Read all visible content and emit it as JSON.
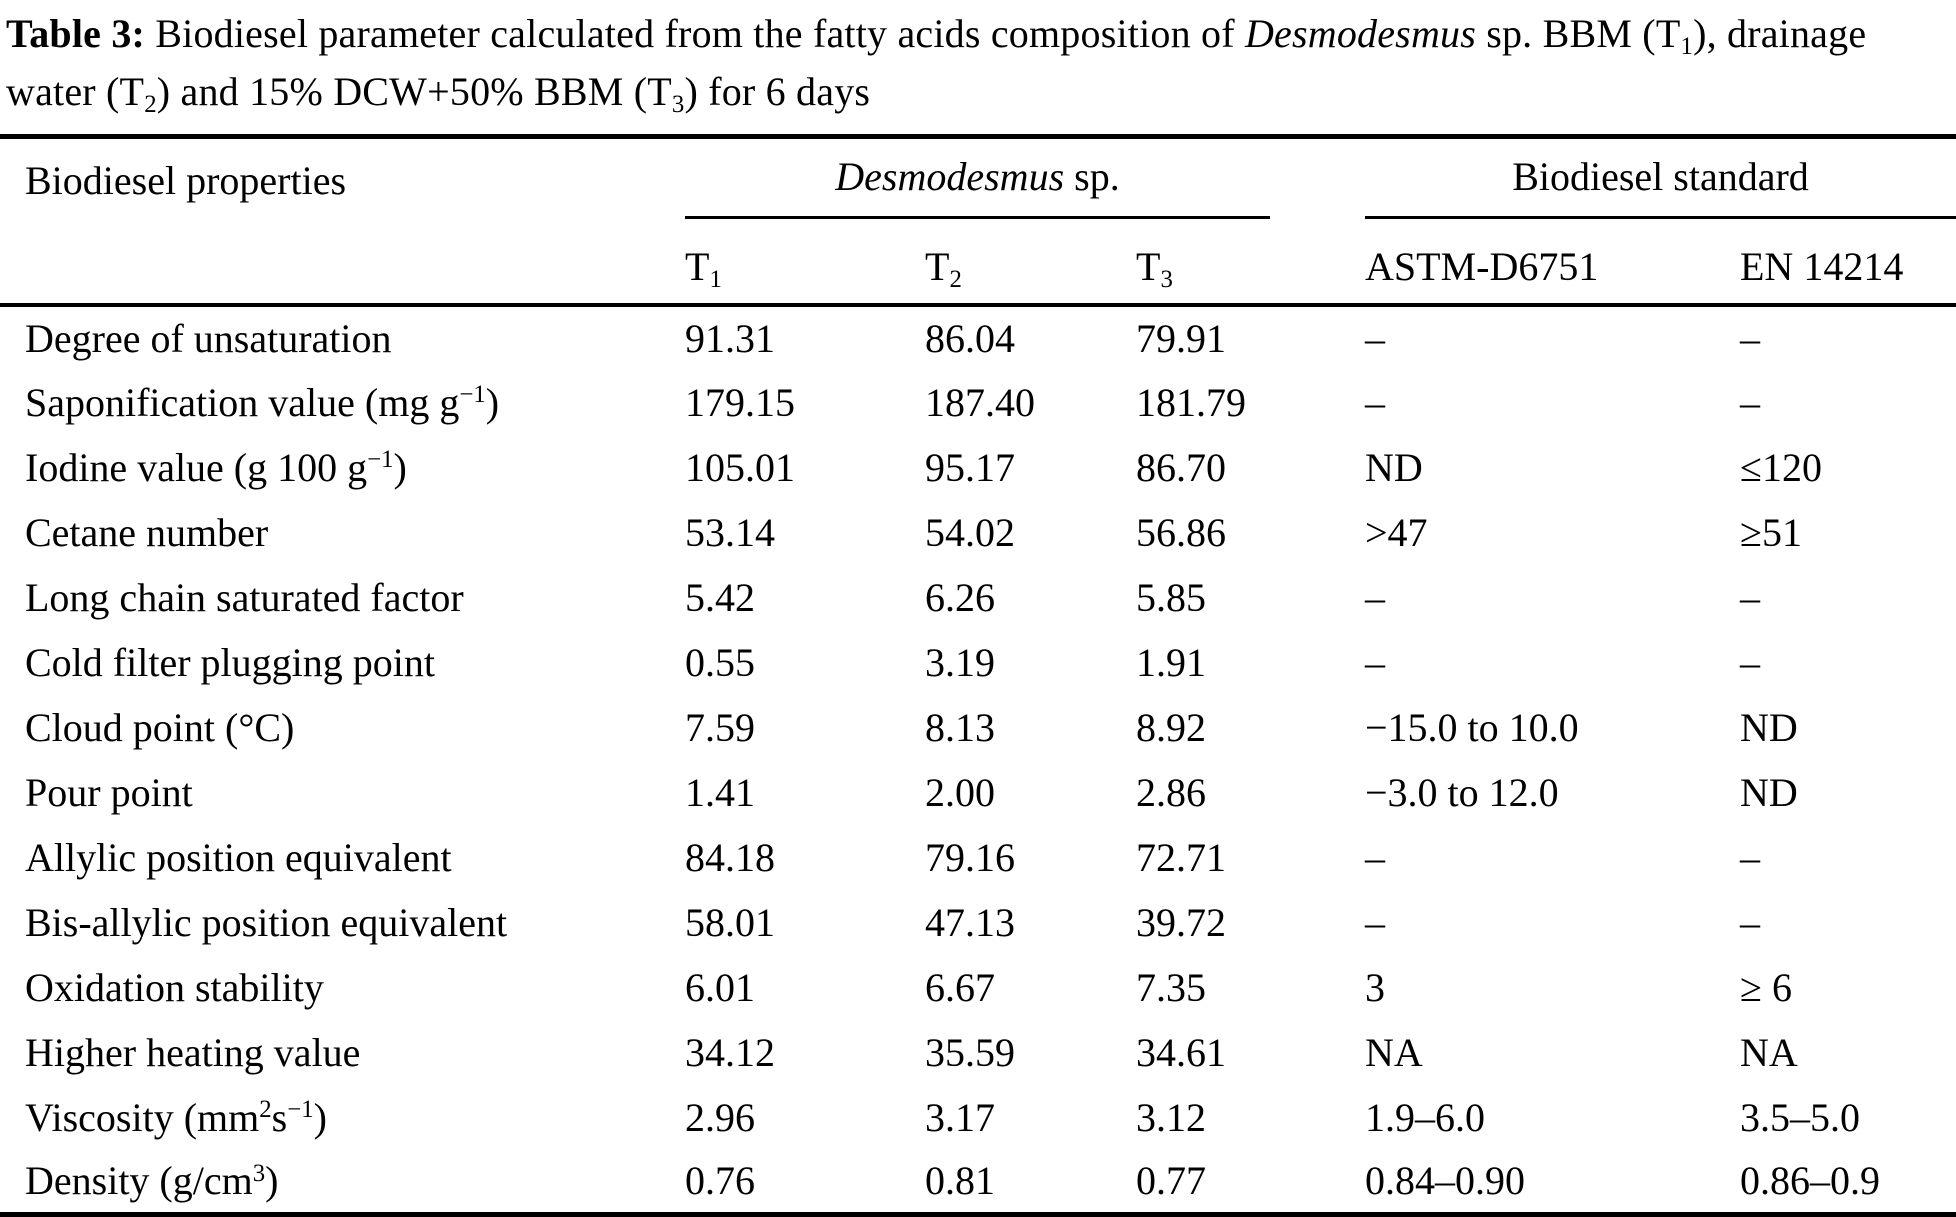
{
  "caption": {
    "label": "Table 3:",
    "part1": " Biodiesel parameter calculated from the fatty acids composition of ",
    "species": "Desmodesmus",
    "part2": " sp. BBM (T",
    "sub1": "1",
    "part3": "), drainage water (T",
    "sub2": "2",
    "part4": ") and 15% DCW+50% BBM (T",
    "sub3": "3",
    "part5": ") for 6 days"
  },
  "header": {
    "property": "Biodiesel properties",
    "species_group_italic": "Desmodesmus",
    "species_group_rest": " sp.",
    "standard_group": "Biodiesel standard",
    "t1_base": "T",
    "t1_sub": "1",
    "t2_base": "T",
    "t2_sub": "2",
    "t3_base": "T",
    "t3_sub": "3",
    "astm": "ASTM-D6751",
    "en": "EN 14214"
  },
  "rows": [
    {
      "label": {
        "pre": "Degree of unsaturation",
        "sup1": "",
        "mid": "",
        "sup2": "",
        "post": ""
      },
      "t1": "91.31",
      "t2": "86.04",
      "t3": "79.91",
      "astm": "–",
      "en": "–"
    },
    {
      "label": {
        "pre": "Saponification value (mg g",
        "sup1": "−1",
        "mid": "",
        "sup2": "",
        "post": ")"
      },
      "t1": "179.15",
      "t2": "187.40",
      "t3": "181.79",
      "astm": "–",
      "en": "–"
    },
    {
      "label": {
        "pre": "Iodine value (g 100 g",
        "sup1": "−1",
        "mid": "",
        "sup2": "",
        "post": ")"
      },
      "t1": "105.01",
      "t2": "95.17",
      "t3": "86.70",
      "astm": "ND",
      "en": "≤120"
    },
    {
      "label": {
        "pre": "Cetane number",
        "sup1": "",
        "mid": "",
        "sup2": "",
        "post": ""
      },
      "t1": "53.14",
      "t2": "54.02",
      "t3": "56.86",
      "astm": ">47",
      "en": "≥51"
    },
    {
      "label": {
        "pre": "Long chain saturated factor",
        "sup1": "",
        "mid": "",
        "sup2": "",
        "post": ""
      },
      "t1": "5.42",
      "t2": "6.26",
      "t3": "5.85",
      "astm": "–",
      "en": "–"
    },
    {
      "label": {
        "pre": "Cold filter plugging point",
        "sup1": "",
        "mid": "",
        "sup2": "",
        "post": ""
      },
      "t1": "0.55",
      "t2": "3.19",
      "t3": "1.91",
      "astm": "–",
      "en": "–"
    },
    {
      "label": {
        "pre": "Cloud point (°C)",
        "sup1": "",
        "mid": "",
        "sup2": "",
        "post": ""
      },
      "t1": "7.59",
      "t2": "8.13",
      "t3": "8.92",
      "astm": "−15.0 to 10.0",
      "en": "ND"
    },
    {
      "label": {
        "pre": "Pour point",
        "sup1": "",
        "mid": "",
        "sup2": "",
        "post": ""
      },
      "t1": "1.41",
      "t2": "2.00",
      "t3": "2.86",
      "astm": "−3.0 to 12.0",
      "en": "ND"
    },
    {
      "label": {
        "pre": "Allylic position equivalent",
        "sup1": "",
        "mid": "",
        "sup2": "",
        "post": ""
      },
      "t1": "84.18",
      "t2": "79.16",
      "t3": "72.71",
      "astm": "–",
      "en": "–"
    },
    {
      "label": {
        "pre": "Bis-allylic position equivalent",
        "sup1": "",
        "mid": "",
        "sup2": "",
        "post": ""
      },
      "t1": "58.01",
      "t2": "47.13",
      "t3": "39.72",
      "astm": "–",
      "en": "–"
    },
    {
      "label": {
        "pre": "Oxidation stability",
        "sup1": "",
        "mid": "",
        "sup2": "",
        "post": ""
      },
      "t1": "6.01",
      "t2": "6.67",
      "t3": "7.35",
      "astm": "3",
      "en": "≥ 6"
    },
    {
      "label": {
        "pre": "Higher heating value",
        "sup1": "",
        "mid": "",
        "sup2": "",
        "post": ""
      },
      "t1": "34.12",
      "t2": "35.59",
      "t3": "34.61",
      "astm": "NA",
      "en": "NA"
    },
    {
      "label": {
        "pre": "Viscosity (mm",
        "sup1": "2",
        "mid": "s",
        "sup2": "−1",
        "post": ")"
      },
      "t1": "2.96",
      "t2": "3.17",
      "t3": "3.12",
      "astm": "1.9–6.0",
      "en": "3.5–5.0"
    },
    {
      "label": {
        "pre": "Density (g/cm",
        "sup1": "3",
        "mid": "",
        "sup2": "",
        "post": ")"
      },
      "t1": "0.76",
      "t2": "0.81",
      "t3": "0.77",
      "astm": "0.84–0.90",
      "en": "0.86–0.9"
    }
  ]
}
